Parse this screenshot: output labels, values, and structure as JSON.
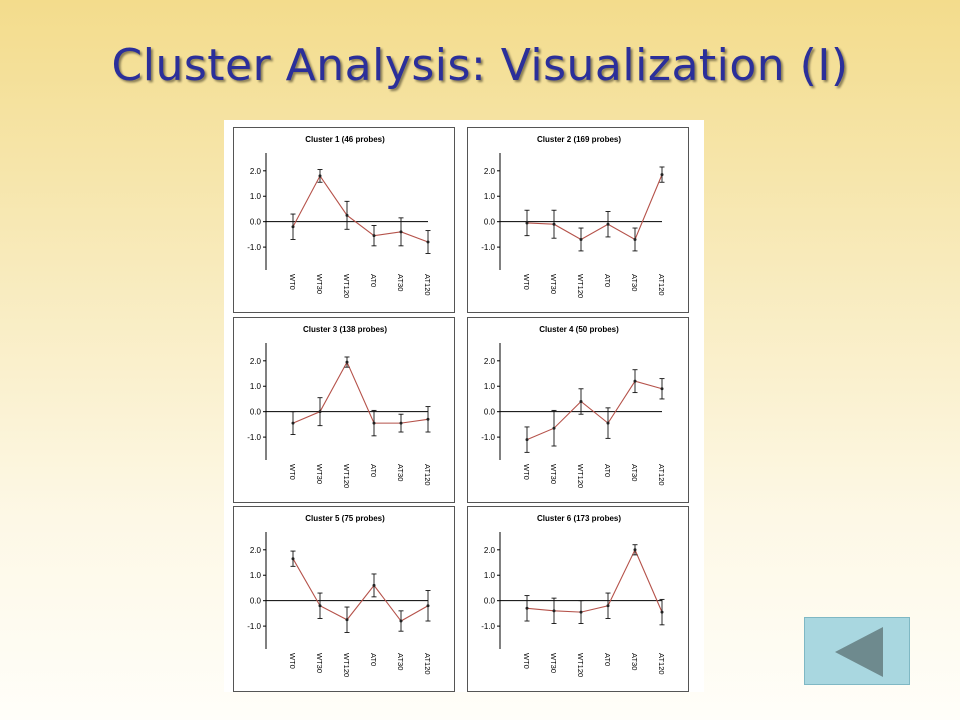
{
  "slide": {
    "title": "Cluster Analysis: Visualization (I)"
  },
  "nav": {
    "back_icon": "triangle-left-icon",
    "button_color": "#a9d7e0",
    "icon_color": "#6e8a8e"
  },
  "colors": {
    "line": "#b5524a",
    "points": "#222222",
    "axis": "#000000"
  },
  "chart_data": [
    {
      "type": "line",
      "title": "Cluster 1 (46 probes)",
      "categories": [
        "WT0",
        "WT30",
        "WT120",
        "AT0",
        "AT30",
        "AT120"
      ],
      "yticks": [
        "2.0",
        "1.0",
        "0.0",
        "-1.0"
      ],
      "ylim": [
        -1.9,
        2.7
      ],
      "series": [
        {
          "values": [
            -0.2,
            1.8,
            0.25,
            -0.55,
            -0.4,
            -0.8
          ],
          "error": [
            0.5,
            0.25,
            0.55,
            0.4,
            0.55,
            0.45
          ]
        }
      ]
    },
    {
      "type": "line",
      "title": "Cluster 2 (169 probes)",
      "categories": [
        "WT0",
        "WT30",
        "WT120",
        "AT0",
        "AT30",
        "AT120"
      ],
      "yticks": [
        "2.0",
        "1.0",
        "0.0",
        "-1.0"
      ],
      "ylim": [
        -1.9,
        2.7
      ],
      "series": [
        {
          "values": [
            -0.05,
            -0.1,
            -0.7,
            -0.1,
            -0.7,
            1.85
          ],
          "error": [
            0.5,
            0.55,
            0.45,
            0.5,
            0.45,
            0.3
          ]
        }
      ]
    },
    {
      "type": "line",
      "title": "Cluster 3 (138 probes)",
      "categories": [
        "WT0",
        "WT30",
        "WT120",
        "AT0",
        "AT30",
        "AT120"
      ],
      "yticks": [
        "2.0",
        "1.0",
        "0.0",
        "-1.0"
      ],
      "ylim": [
        -1.9,
        2.7
      ],
      "series": [
        {
          "values": [
            -0.45,
            0.0,
            1.95,
            -0.45,
            -0.45,
            -0.3
          ],
          "error": [
            0.45,
            0.55,
            0.2,
            0.5,
            0.35,
            0.5
          ]
        }
      ]
    },
    {
      "type": "line",
      "title": "Cluster 4 (50 probes)",
      "categories": [
        "WT0",
        "WT30",
        "WT120",
        "AT0",
        "AT30",
        "AT120"
      ],
      "yticks": [
        "2.0",
        "1.0",
        "0.0",
        "-1.0"
      ],
      "ylim": [
        -1.9,
        2.7
      ],
      "series": [
        {
          "values": [
            -1.1,
            -0.65,
            0.4,
            -0.45,
            1.2,
            0.9
          ],
          "error": [
            0.5,
            0.7,
            0.5,
            0.6,
            0.45,
            0.4
          ]
        }
      ]
    },
    {
      "type": "line",
      "title": "Cluster 5 (75 probes)",
      "categories": [
        "WT0",
        "WT30",
        "WT120",
        "AT0",
        "AT30",
        "AT120"
      ],
      "yticks": [
        "2.0",
        "1.0",
        "0.0",
        "-1.0"
      ],
      "ylim": [
        -1.9,
        2.7
      ],
      "series": [
        {
          "values": [
            1.65,
            -0.2,
            -0.75,
            0.6,
            -0.8,
            -0.2
          ],
          "error": [
            0.3,
            0.5,
            0.5,
            0.45,
            0.4,
            0.6
          ]
        }
      ]
    },
    {
      "type": "line",
      "title": "Cluster 6 (173 probes)",
      "categories": [
        "WT0",
        "WT30",
        "WT120",
        "AT0",
        "AT30",
        "AT120"
      ],
      "yticks": [
        "2.0",
        "1.0",
        "0.0",
        "-1.0"
      ],
      "ylim": [
        -1.9,
        2.7
      ],
      "series": [
        {
          "values": [
            -0.3,
            -0.4,
            -0.45,
            -0.2,
            2.0,
            -0.45
          ],
          "error": [
            0.5,
            0.5,
            0.45,
            0.5,
            0.2,
            0.5
          ]
        }
      ]
    }
  ]
}
